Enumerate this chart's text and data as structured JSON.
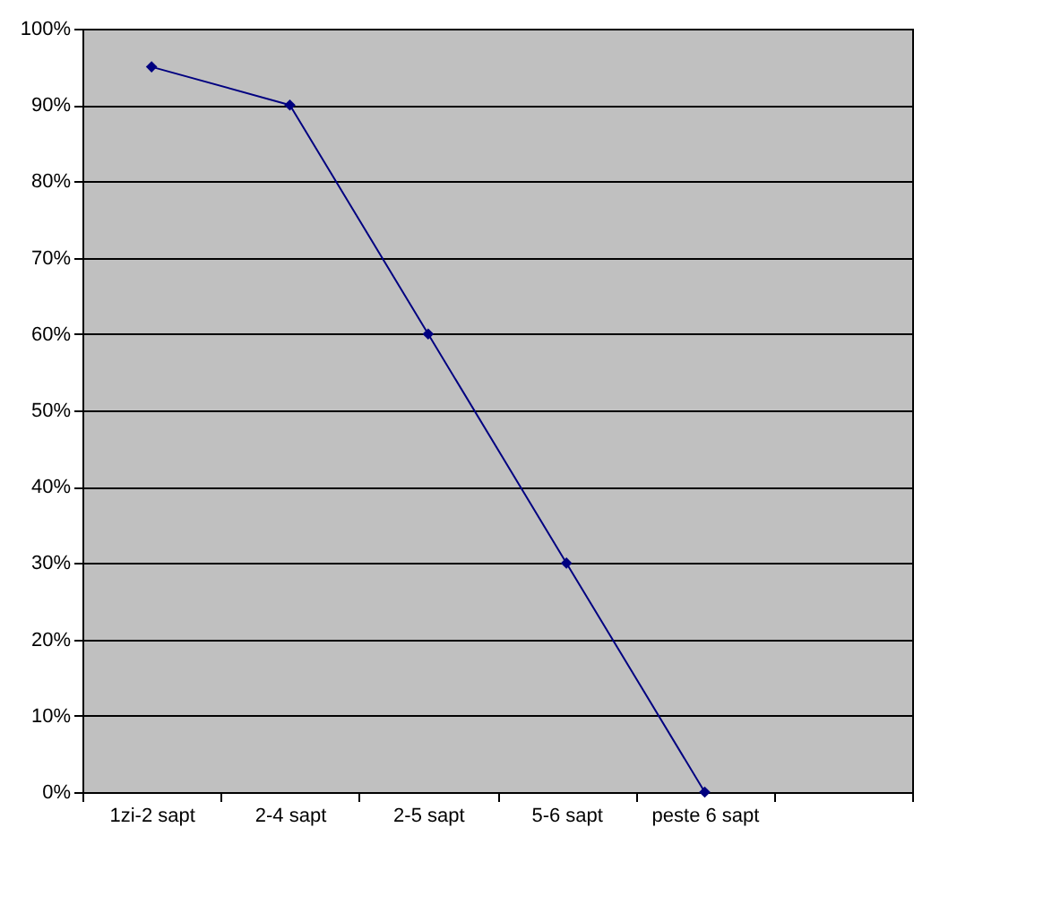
{
  "chart_data": {
    "type": "line",
    "categories": [
      "1zi-2 sapt",
      "2-4 sapt",
      "2-5 sapt",
      "5-6 sapt",
      "peste 6 sapt",
      null
    ],
    "series": [
      {
        "color": "#000080",
        "values": [
          95,
          90,
          60,
          30,
          0,
          null
        ]
      }
    ],
    "ylim": [
      0,
      100
    ],
    "yticks": [
      {
        "value": 0,
        "label": "0%"
      },
      {
        "value": 10,
        "label": "10%"
      },
      {
        "value": 20,
        "label": "20%"
      },
      {
        "value": 30,
        "label": "30%"
      },
      {
        "value": 40,
        "label": "40%"
      },
      {
        "value": 50,
        "label": "50%"
      },
      {
        "value": 60,
        "label": "60%"
      },
      {
        "value": 70,
        "label": "70%"
      },
      {
        "value": 80,
        "label": "80%"
      },
      {
        "value": 90,
        "label": "90%"
      },
      {
        "value": 100,
        "label": "100%"
      }
    ],
    "grid": "y",
    "marker": "diamond",
    "line_style": "solid"
  }
}
